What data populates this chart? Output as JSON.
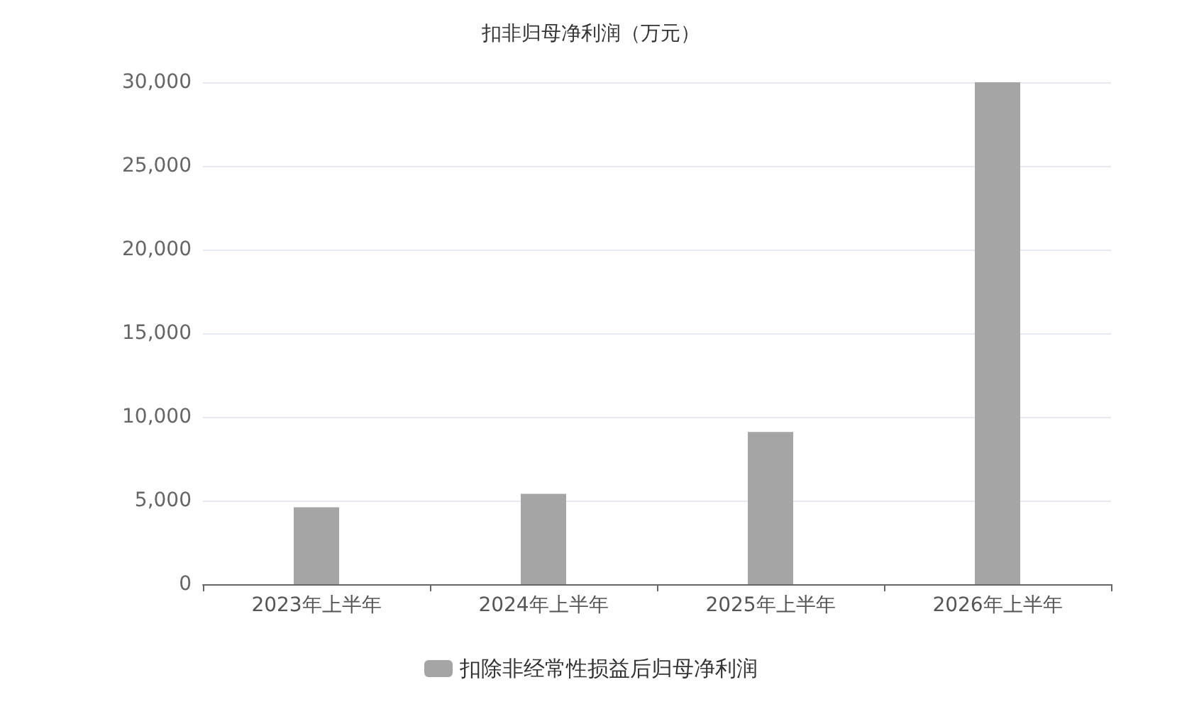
{
  "chart_data": {
    "type": "bar",
    "title": "扣非归母净利润（万元）",
    "categories": [
      "2023年上半年",
      "2024年上半年",
      "2025年上半年",
      "2026年上半年"
    ],
    "series": [
      {
        "name": "扣除非经常性损益后归母净利润",
        "color": "#a5a5a5",
        "values": [
          4600,
          5400,
          9100,
          30000
        ]
      }
    ],
    "ylim": [
      0,
      30000
    ],
    "yticks": [
      0,
      {
        "value": 5000,
        "label": "5,000"
      },
      {
        "value": 10000,
        "label": "10,000"
      },
      {
        "value": 15000,
        "label": "15,000"
      },
      {
        "value": 20000,
        "label": "20,000"
      },
      {
        "value": 25000,
        "label": "25,000"
      },
      {
        "value": 30000,
        "label": "30,000"
      }
    ],
    "grid": "y",
    "legend": "bottom"
  }
}
